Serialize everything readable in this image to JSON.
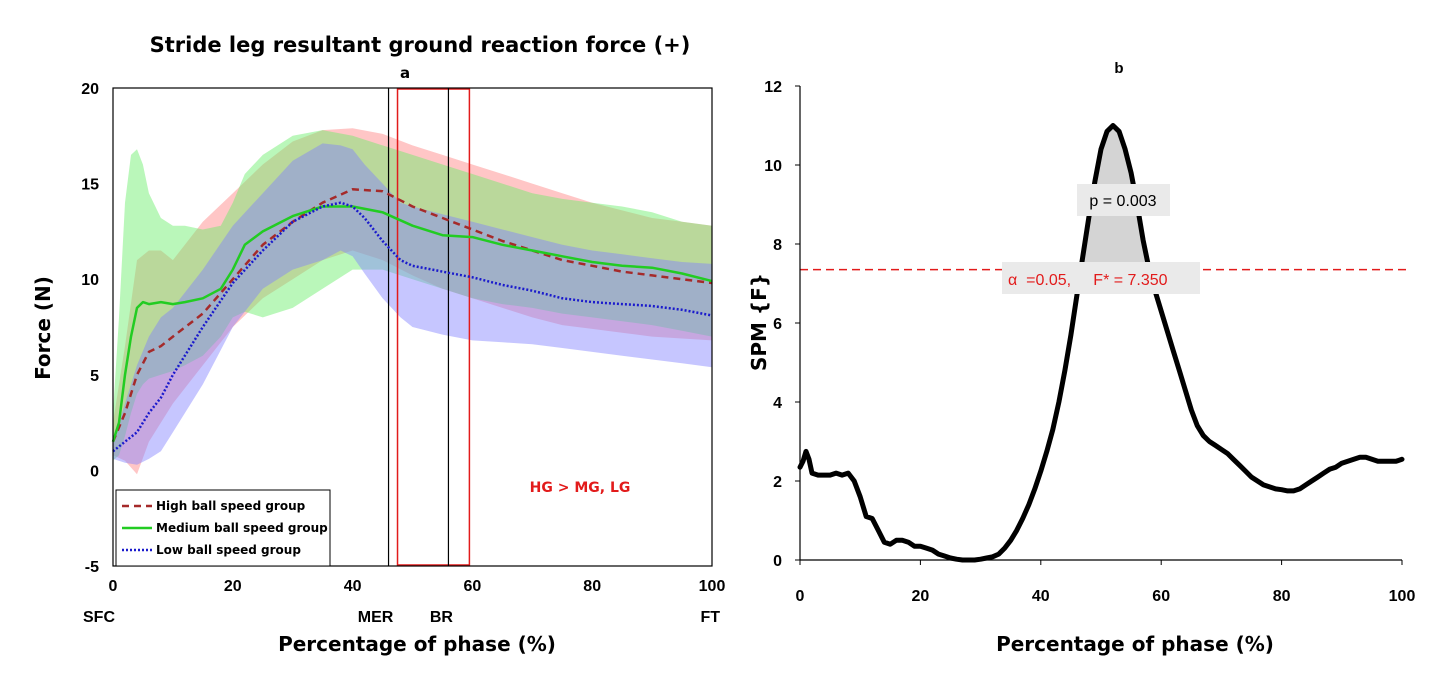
{
  "figure_title": "Stride leg resultant ground reaction force (+)",
  "chart_data": [
    {
      "panel": "a",
      "type": "line",
      "title": "Stride leg resultant ground reaction force (+)",
      "panel_label": "a",
      "xlabel": "Percentage of phase (%)",
      "ylabel": "Force (N)",
      "xlim": [
        0,
        100
      ],
      "ylim": [
        -5,
        20
      ],
      "xticks": [
        0,
        20,
        40,
        60,
        80,
        100
      ],
      "yticks": [
        -5,
        0,
        5,
        10,
        15,
        20
      ],
      "event_labels": [
        {
          "x": 0,
          "label": "SFC"
        },
        {
          "x": 46,
          "label": "MER"
        },
        {
          "x": 56,
          "label": "BR"
        },
        {
          "x": 100,
          "label": "FT"
        }
      ],
      "vlines": [
        46,
        56
      ],
      "highlight_region": [
        47.5,
        59.5
      ],
      "annotation": "HG > MG, LG",
      "legend_position": "bottom-left",
      "series": [
        {
          "name": "High ball speed group",
          "color": "#a52a2a",
          "style": "dashed",
          "x": [
            0,
            2,
            4,
            6,
            8,
            10,
            15,
            20,
            25,
            30,
            35,
            40,
            45,
            50,
            55,
            60,
            65,
            70,
            75,
            80,
            85,
            90,
            95,
            100
          ],
          "values": [
            1.5,
            3.0,
            5.0,
            6.2,
            6.5,
            7.0,
            8.2,
            10.0,
            11.8,
            13.0,
            14.0,
            14.7,
            14.6,
            13.8,
            13.2,
            12.6,
            12.0,
            11.5,
            11.0,
            10.7,
            10.4,
            10.2,
            10.0,
            9.8
          ],
          "band_upper": [
            2.5,
            6.5,
            11.0,
            11.5,
            11.5,
            11.0,
            13.0,
            14.5,
            16.0,
            17.2,
            17.8,
            17.9,
            17.6,
            17.0,
            16.5,
            16.0,
            15.5,
            15.0,
            14.5,
            14.0,
            13.6,
            13.2,
            13.0,
            12.8
          ],
          "band_lower": [
            0.8,
            0.5,
            -0.2,
            1.5,
            2.5,
            3.5,
            5.5,
            7.5,
            9.0,
            10.0,
            11.0,
            11.5,
            11.0,
            10.2,
            9.5,
            9.0,
            8.5,
            8.0,
            7.6,
            7.4,
            7.2,
            7.0,
            6.9,
            6.8
          ],
          "band_color": "#ff8080"
        },
        {
          "name": "Medium ball speed group",
          "color": "#22cc22",
          "style": "solid",
          "x": [
            0,
            1,
            2,
            3,
            4,
            5,
            6,
            8,
            10,
            12,
            15,
            18,
            20,
            22,
            25,
            30,
            35,
            40,
            45,
            50,
            55,
            60,
            65,
            70,
            75,
            80,
            85,
            90,
            95,
            100
          ],
          "values": [
            1.5,
            2.5,
            5.0,
            7.0,
            8.5,
            8.8,
            8.7,
            8.8,
            8.7,
            8.8,
            9.0,
            9.5,
            10.5,
            11.8,
            12.5,
            13.3,
            13.8,
            13.8,
            13.5,
            12.8,
            12.3,
            12.2,
            11.8,
            11.5,
            11.2,
            10.9,
            10.7,
            10.6,
            10.3,
            9.9
          ],
          "band_upper": [
            3.0,
            8.0,
            14.0,
            16.5,
            16.8,
            16.0,
            14.5,
            13.2,
            12.8,
            12.8,
            12.6,
            12.8,
            14.0,
            15.5,
            16.5,
            17.5,
            17.8,
            17.5,
            17.0,
            16.5,
            16.0,
            15.5,
            15.0,
            14.5,
            14.2,
            14.0,
            13.8,
            13.5,
            13.0,
            12.8
          ],
          "band_lower": [
            0.5,
            0.8,
            1.8,
            3.0,
            4.0,
            4.5,
            4.8,
            5.0,
            5.2,
            5.5,
            6.0,
            7.0,
            8.0,
            8.3,
            8.0,
            8.5,
            9.5,
            10.5,
            10.5,
            10.0,
            9.5,
            9.0,
            8.7,
            8.5,
            8.2,
            8.0,
            7.8,
            7.6,
            7.3,
            7.0
          ],
          "band_color": "#66ee66"
        },
        {
          "name": "Low ball speed group",
          "color": "#1a1acc",
          "style": "dotted",
          "x": [
            0,
            2,
            4,
            6,
            8,
            10,
            15,
            20,
            25,
            30,
            35,
            38,
            40,
            42,
            45,
            48,
            50,
            55,
            60,
            65,
            70,
            75,
            80,
            85,
            90,
            95,
            100
          ],
          "values": [
            1.0,
            1.5,
            2.0,
            3.0,
            3.8,
            5.0,
            7.5,
            9.8,
            11.5,
            13.0,
            13.8,
            14.0,
            13.8,
            13.2,
            12.0,
            11.0,
            10.7,
            10.4,
            10.1,
            9.7,
            9.4,
            9.0,
            8.8,
            8.7,
            8.6,
            8.4,
            8.1
          ],
          "band_upper": [
            1.5,
            3.5,
            5.5,
            7.0,
            8.0,
            8.5,
            10.5,
            12.8,
            14.5,
            16.2,
            17.1,
            17.0,
            16.8,
            16.0,
            15.0,
            14.0,
            13.8,
            13.4,
            13.0,
            12.6,
            12.2,
            11.8,
            11.5,
            11.3,
            11.1,
            10.9,
            10.8
          ],
          "band_lower": [
            0.6,
            0.4,
            0.3,
            0.6,
            1.0,
            2.0,
            4.5,
            7.5,
            9.5,
            10.5,
            11.0,
            11.5,
            11.2,
            10.3,
            9.0,
            8.0,
            7.5,
            7.1,
            6.8,
            6.7,
            6.6,
            6.4,
            6.2,
            6.0,
            5.8,
            5.6,
            5.4
          ],
          "band_color": "#8080ff"
        }
      ]
    },
    {
      "panel": "b",
      "type": "line",
      "panel_label": "b",
      "xlabel": "Percentage of phase (%)",
      "ylabel": "SPM {F}",
      "xlim": [
        0,
        100
      ],
      "ylim": [
        0,
        12
      ],
      "xticks": [
        0,
        20,
        40,
        60,
        80,
        100
      ],
      "yticks": [
        0,
        2,
        4,
        6,
        8,
        10,
        12
      ],
      "threshold": 7.35,
      "threshold_label": "α  =0.05,     F* = 7.350",
      "p_label": "p = 0.003",
      "x": [
        0,
        0.5,
        1,
        1.5,
        2,
        3,
        4,
        5,
        6,
        7,
        8,
        9,
        10,
        11,
        12,
        13,
        14,
        15,
        16,
        17,
        18,
        19,
        20,
        21,
        22,
        23,
        24,
        25,
        26,
        27,
        28,
        29,
        30,
        31,
        32,
        33,
        34,
        35,
        36,
        37,
        38,
        39,
        40,
        41,
        42,
        43,
        44,
        45,
        46,
        47,
        48,
        49,
        50,
        51,
        52,
        53,
        54,
        55,
        56,
        57,
        58,
        59,
        60,
        61,
        62,
        63,
        64,
        65,
        66,
        67,
        68,
        69,
        70,
        71,
        72,
        73,
        74,
        75,
        76,
        77,
        78,
        79,
        80,
        81,
        82,
        83,
        84,
        85,
        86,
        87,
        88,
        89,
        90,
        91,
        92,
        93,
        94,
        95,
        96,
        97,
        98,
        99,
        100
      ],
      "values": [
        2.35,
        2.5,
        2.75,
        2.55,
        2.2,
        2.15,
        2.15,
        2.15,
        2.2,
        2.15,
        2.2,
        2.0,
        1.6,
        1.1,
        1.05,
        0.75,
        0.45,
        0.4,
        0.5,
        0.5,
        0.45,
        0.35,
        0.35,
        0.3,
        0.25,
        0.15,
        0.1,
        0.05,
        0.02,
        0.0,
        0.0,
        0.0,
        0.02,
        0.05,
        0.08,
        0.15,
        0.3,
        0.5,
        0.75,
        1.05,
        1.4,
        1.8,
        2.25,
        2.75,
        3.3,
        4.0,
        4.8,
        5.7,
        6.7,
        7.7,
        8.7,
        9.6,
        10.4,
        10.85,
        11.0,
        10.85,
        10.4,
        9.8,
        9.0,
        8.1,
        7.35,
        6.8,
        6.3,
        5.8,
        5.3,
        4.8,
        4.3,
        3.8,
        3.4,
        3.15,
        3.0,
        2.9,
        2.8,
        2.7,
        2.55,
        2.4,
        2.25,
        2.1,
        2.0,
        1.9,
        1.85,
        1.8,
        1.78,
        1.75,
        1.75,
        1.8,
        1.9,
        2.0,
        2.1,
        2.2,
        2.3,
        2.35,
        2.45,
        2.5,
        2.55,
        2.6,
        2.6,
        2.55,
        2.5,
        2.5,
        2.5,
        2.5,
        2.55
      ]
    }
  ]
}
